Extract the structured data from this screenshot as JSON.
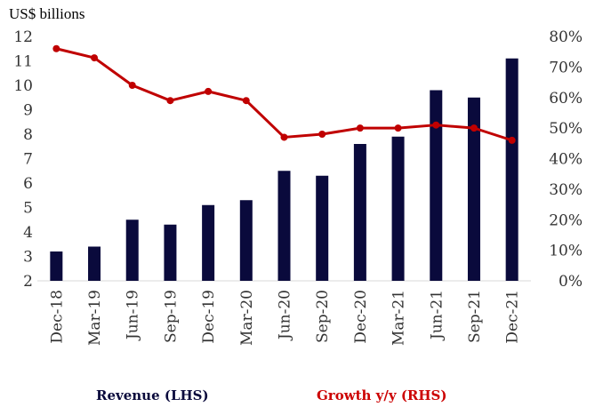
{
  "chart_data": {
    "type": "bar",
    "unit_label": "US$ billions",
    "categories": [
      "Dec-18",
      "Mar-19",
      "Jun-19",
      "Sep-19",
      "Dec-19",
      "Mar-20",
      "Jun-20",
      "Sep-20",
      "Dec-20",
      "Mar-21",
      "Jun-21",
      "Sep-21",
      "Dec-21"
    ],
    "series": [
      {
        "name": "Revenue (LHS)",
        "type": "bar",
        "axis": "left",
        "color": "#0a0a3c",
        "values": [
          3.2,
          3.4,
          4.5,
          4.3,
          5.1,
          5.3,
          6.5,
          6.3,
          7.6,
          7.9,
          9.8,
          9.5,
          11.1
        ]
      },
      {
        "name": "Growth y/y (RHS)",
        "type": "line",
        "axis": "right",
        "color": "#c00000",
        "values": [
          76,
          73,
          64,
          59,
          62,
          59,
          47,
          48,
          50,
          50,
          51,
          50,
          46
        ]
      }
    ],
    "left_axis": {
      "min": 2,
      "max": 12,
      "ticks": [
        "2",
        "3",
        "4",
        "5",
        "6",
        "7",
        "8",
        "9",
        "10",
        "11",
        "12"
      ]
    },
    "right_axis": {
      "min": 0,
      "max": 80,
      "ticks": [
        "0%",
        "10%",
        "20%",
        "30%",
        "40%",
        "50%",
        "60%",
        "70%",
        "80%"
      ]
    },
    "grid": false,
    "legend_position": "bottom"
  }
}
